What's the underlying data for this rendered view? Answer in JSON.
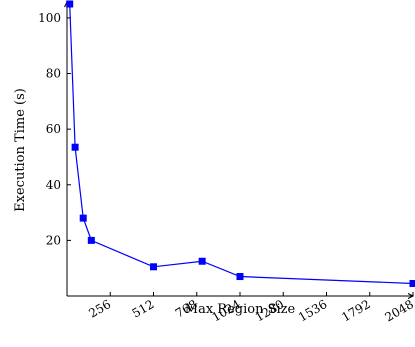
{
  "chart_data": {
    "type": "line",
    "xlabel": "Max Region Size",
    "ylabel": "Execution Time (s)",
    "xlim": [
      0,
      2048
    ],
    "ylim": [
      0,
      105
    ],
    "xticks": [
      256,
      512,
      768,
      1024,
      1280,
      1536,
      1792,
      2048
    ],
    "yticks": [
      20,
      40,
      60,
      80,
      100
    ],
    "grid": false,
    "line_color": "#0000ff",
    "series": [
      {
        "x": [
          16,
          48,
          96,
          144,
          512,
          800,
          1024,
          2048
        ],
        "y": [
          105,
          53.5,
          28,
          20,
          10.5,
          12.5,
          7,
          4.5
        ]
      }
    ]
  }
}
